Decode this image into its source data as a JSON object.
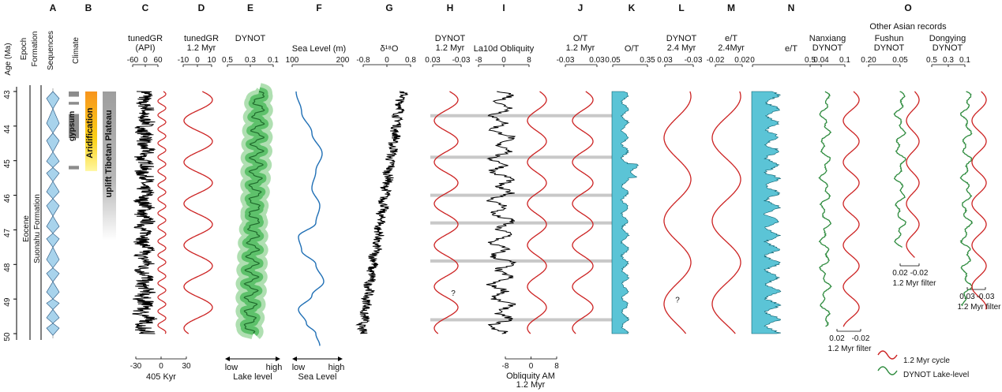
{
  "figure": {
    "panel_letters": [
      "A",
      "B",
      "C",
      "D",
      "E",
      "F",
      "G",
      "H",
      "I",
      "J",
      "K",
      "L",
      "M",
      "N",
      "O"
    ],
    "age_axis_label": "Age (Ma)",
    "epoch_header": "Epoch",
    "formation_header": "Formation",
    "sequences_header": "Sequences",
    "climate_header": "Climate",
    "epoch_name": "Eocene",
    "formation_name": "Suonahu Formation",
    "climate_labels": {
      "gypsum": "gypsum",
      "aridification": "Aridification",
      "uplift": "uplift Tibetan Plateau"
    },
    "other_records_title": "Other Asian records",
    "question_mark": "?",
    "legend": {
      "red": "1.2 Myr cycle",
      "green": "DYNOT Lake-level"
    },
    "colors": {
      "red": "#cc2222",
      "green": "#2e8b3e",
      "cyan": "#5bc4d6",
      "blue": "#1f6fb5",
      "black": "#000000"
    }
  },
  "chart_data": {
    "type": "line",
    "age_axis": {
      "label": "Age (Ma)",
      "range": [
        43,
        50
      ],
      "ticks": [
        "43",
        "44",
        "45",
        "46",
        "47",
        "48",
        "49",
        "50"
      ]
    },
    "highlight_ages": [
      43.7,
      44.9,
      46.0,
      46.8,
      47.9,
      49.6
    ],
    "panels": [
      {
        "id": "C",
        "header": [
          "tunedGR",
          "(API)"
        ],
        "top_ticks": [
          "-60",
          "0",
          "60"
        ],
        "bottom_ticks": [
          "-30",
          "0",
          "30"
        ],
        "bottom_label": "405 Kyr"
      },
      {
        "id": "D",
        "header": [
          "tunedGR",
          "1.2 Myr"
        ],
        "top_ticks": [
          "-10",
          "0",
          "10"
        ]
      },
      {
        "id": "E",
        "header": [
          "DYNOT"
        ],
        "top_ticks": [
          "0.5",
          "0.3",
          "0.1"
        ],
        "bottom_low": "low",
        "bottom_high": "high",
        "bottom_label": "Lake level"
      },
      {
        "id": "F",
        "header": [
          "Sea Level (m)"
        ],
        "top_ticks": [
          "100",
          "200"
        ],
        "bottom_low": "low",
        "bottom_high": "high",
        "bottom_label": "Sea Level"
      },
      {
        "id": "G",
        "header": [
          "δ¹⁸O"
        ],
        "top_ticks": [
          "-0.8",
          "0",
          "0.8"
        ]
      },
      {
        "id": "H",
        "header": [
          "DYNOT",
          "1.2 Myr"
        ],
        "top_ticks": [
          "0.03",
          "-0.03"
        ]
      },
      {
        "id": "I",
        "header": [
          "La10d Obliquity"
        ],
        "top_ticks": [
          "-8",
          "0",
          "8"
        ],
        "bottom_ticks": [
          "-8",
          "0",
          "8"
        ],
        "bottom_label": [
          "Obliquity AM",
          "1.2 Myr"
        ]
      },
      {
        "id": "J",
        "header": [
          "O/T",
          "1.2 Myr"
        ],
        "top_ticks": [
          "-0.03",
          "0.03"
        ]
      },
      {
        "id": "K",
        "header": [
          "O/T"
        ],
        "top_ticks": [
          "0.05",
          "0.35"
        ]
      },
      {
        "id": "L",
        "header": [
          "DYNOT",
          "2.4 Myr"
        ],
        "top_ticks": [
          "0.03",
          "-0.03"
        ]
      },
      {
        "id": "M",
        "header": [
          "e/T",
          "2.4Myr"
        ],
        "top_ticks": [
          "-0.02",
          "0.02"
        ]
      },
      {
        "id": "N",
        "header": [
          "e/T"
        ],
        "top_ticks": [
          "0",
          "0.04"
        ]
      },
      {
        "id": "O1",
        "header": [
          "Nanxiang",
          "DYNOT"
        ],
        "top_ticks": [
          "0.5",
          "0.1"
        ],
        "filter_ticks": [
          "0.02",
          "-0.02"
        ],
        "filter_label": "1.2 Myr filter"
      },
      {
        "id": "O2",
        "header": [
          "Fushun",
          "DYNOT"
        ],
        "top_ticks": [
          "0.20",
          "0.05"
        ],
        "filter_ticks": [
          "0.02",
          "-0.02"
        ],
        "filter_label": "1.2 Myr filter"
      },
      {
        "id": "O3",
        "header": [
          "Dongying",
          "DYNOT"
        ],
        "top_ticks": [
          "0.5",
          "0.3",
          "0.1"
        ],
        "filter_ticks": [
          "0.03",
          "-0.03"
        ],
        "filter_label": "1.2 Myr filter"
      }
    ],
    "series": [
      {
        "panel": "C",
        "type": "filtered-cycle",
        "period_myr": 0.405
      },
      {
        "panel": "D",
        "type": "filtered-cycle",
        "period_myr": 1.2
      },
      {
        "panel": "H",
        "type": "filtered-cycle",
        "period_myr": 1.2
      },
      {
        "panel": "J",
        "type": "filtered-cycle",
        "period_myr": 1.2
      },
      {
        "panel": "L",
        "type": "filtered-cycle",
        "period_myr": 2.4
      },
      {
        "panel": "M",
        "type": "filtered-cycle",
        "period_myr": 2.4
      },
      {
        "panel": "O1",
        "type": "filtered-cycle",
        "period_myr": 1.2
      },
      {
        "panel": "O2",
        "type": "filtered-cycle",
        "period_myr": 1.2
      },
      {
        "panel": "O3",
        "type": "filtered-cycle",
        "period_myr": 1.2
      }
    ]
  }
}
